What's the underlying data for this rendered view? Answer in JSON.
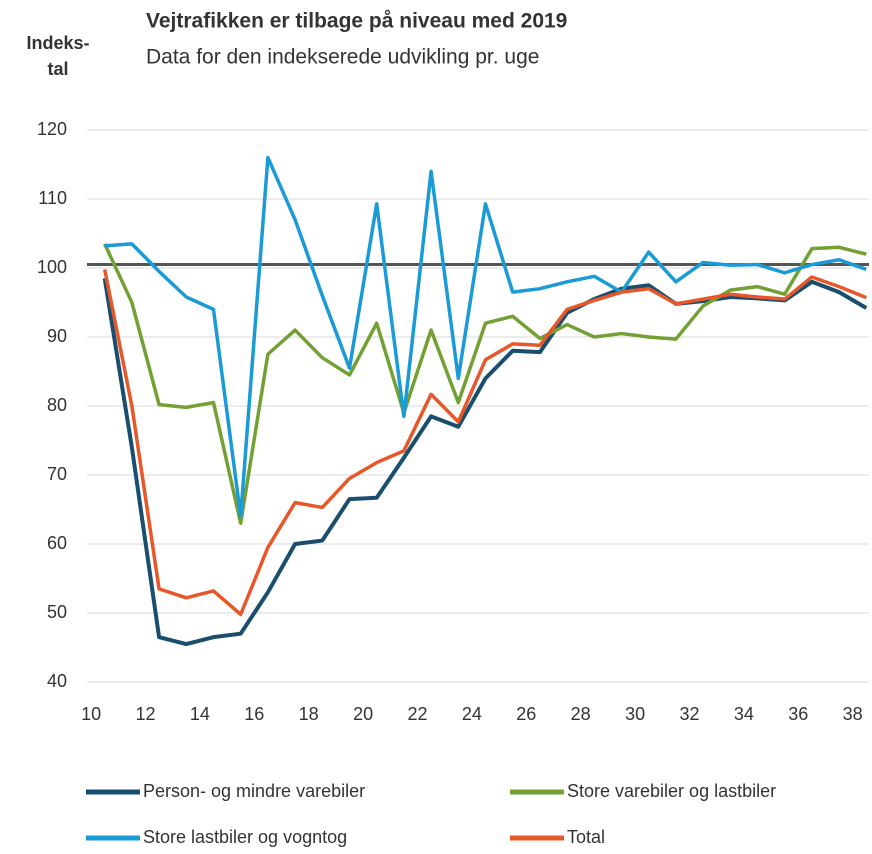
{
  "chart_data": {
    "type": "line",
    "title": "Vejtrafikken er tilbage på niveau med 2019",
    "subtitle": "Data for den indekserede udvikling pr. uge",
    "ylabel_lines": [
      "Indeks-",
      "tal"
    ],
    "x": [
      10.5,
      11.5,
      12.5,
      13.5,
      14.5,
      15.5,
      16.5,
      17.5,
      18.5,
      19.5,
      20.5,
      21.5,
      22.5,
      23.5,
      24.5,
      25.5,
      26.5,
      27.5,
      28.5,
      29.5,
      30.5,
      31.5,
      32.5,
      33.5,
      34.5,
      35.5,
      36.5,
      37.5,
      38.5
    ],
    "xlim": [
      9.85,
      38.6
    ],
    "xticks": [
      10,
      12,
      14,
      16,
      18,
      20,
      22,
      24,
      26,
      28,
      30,
      32,
      34,
      36,
      38
    ],
    "ylim": [
      40,
      120
    ],
    "yticks": [
      40,
      50,
      60,
      70,
      80,
      90,
      100,
      110,
      120
    ],
    "grid": true,
    "reference_line": {
      "value": 100.5,
      "color": "#555555"
    },
    "series": [
      {
        "name": "Person- og mindre varebiler",
        "color": "#1a4e6e",
        "values": [
          98.5,
          74,
          46.5,
          45.5,
          46.5,
          47,
          53,
          60,
          60.5,
          66.5,
          66.7,
          72.5,
          78.5,
          77,
          84,
          88,
          87.8,
          93.5,
          95.5,
          97,
          97.5,
          94.8,
          95.2,
          95.8,
          95.6,
          95.3,
          98,
          96.5,
          94.2
        ]
      },
      {
        "name": "Store varebiler og lastbiler",
        "color": "#72a033",
        "values": [
          103.5,
          95,
          80.2,
          79.8,
          80.5,
          63,
          87.5,
          91,
          87,
          84.5,
          92,
          79,
          91,
          80.5,
          92,
          93,
          89.8,
          91.8,
          90,
          90.5,
          90,
          89.7,
          94.5,
          96.8,
          97.3,
          96.2,
          102.8,
          103,
          102
        ]
      },
      {
        "name": "Store lastbiler og vogntog",
        "color": "#1a9ad6",
        "values": [
          103.2,
          103.5,
          99.5,
          95.8,
          94,
          64,
          116,
          107,
          96,
          85.5,
          109.3,
          78.5,
          114,
          84,
          109.3,
          96.5,
          97,
          98,
          98.8,
          96.5,
          102.3,
          98,
          100.8,
          100.4,
          100.5,
          99.3,
          100.5,
          101.2,
          99.8
        ]
      },
      {
        "name": "Total",
        "color": "#e8572a",
        "values": [
          99.8,
          80,
          53.5,
          52.2,
          53.2,
          49.8,
          59.5,
          66,
          65.3,
          69.5,
          71.8,
          73.5,
          81.7,
          77.7,
          86.7,
          89,
          88.8,
          94,
          95.3,
          96.5,
          97,
          94.8,
          95.5,
          96.2,
          95.8,
          95.5,
          98.7,
          97.3,
          95.7
        ]
      }
    ]
  }
}
